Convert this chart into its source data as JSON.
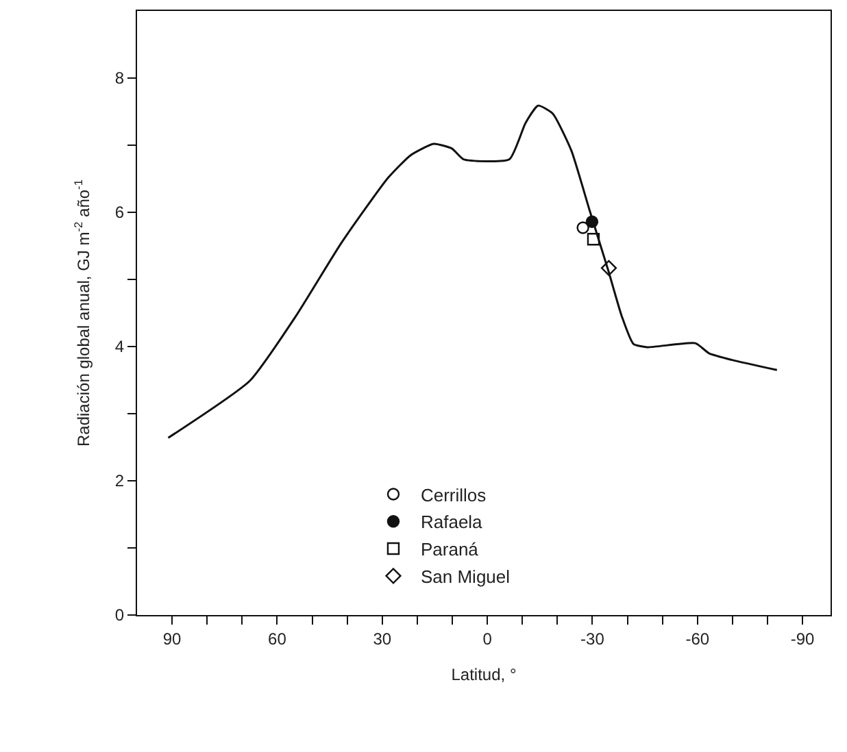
{
  "chart_data": {
    "type": "line",
    "xlabel": "Latitud, °",
    "ylabel": "Radiación global anual, GJ m$^{-2}$ año$^{-1}$",
    "xlim": [
      100,
      -98
    ],
    "ylim": [
      0,
      9
    ],
    "xticks": [
      {
        "value": 90,
        "label": "90"
      },
      {
        "value": 80,
        "label": null
      },
      {
        "value": 70,
        "label": null
      },
      {
        "value": 60,
        "label": "60"
      },
      {
        "value": 50,
        "label": null
      },
      {
        "value": 40,
        "label": null
      },
      {
        "value": 30,
        "label": "30"
      },
      {
        "value": 20,
        "label": null
      },
      {
        "value": 10,
        "label": null
      },
      {
        "value": 0,
        "label": "0"
      },
      {
        "value": -10,
        "label": null
      },
      {
        "value": -20,
        "label": null
      },
      {
        "value": -30,
        "label": "-30"
      },
      {
        "value": -40,
        "label": null
      },
      {
        "value": -50,
        "label": null
      },
      {
        "value": -60,
        "label": "-60"
      },
      {
        "value": -70,
        "label": null
      },
      {
        "value": -80,
        "label": null
      },
      {
        "value": -90,
        "label": "-90"
      }
    ],
    "yticks": [
      0,
      {
        "value": 1,
        "label": null
      },
      2,
      {
        "value": 3,
        "label": null
      },
      4,
      {
        "value": 5,
        "label": null
      },
      6,
      {
        "value": 7,
        "label": null
      },
      8
    ],
    "legend": "bottom",
    "series": [
      {
        "color": "#111111",
        "marker": "none",
        "x": [
          91.1,
          67.8,
          54.7,
          41.6,
          28.4,
          21.9,
          15.3,
          10.1,
          6.8,
          -6.3,
          -10.9,
          -14.5,
          -18.7,
          -24.0,
          -29.2,
          -34.5,
          -38.4,
          -41.7,
          -45.6,
          -59.4,
          -63.3,
          -69.9,
          -82.7
        ],
        "values": [
          2.64,
          3.49,
          4.45,
          5.55,
          6.51,
          6.85,
          7.02,
          6.95,
          6.79,
          6.79,
          7.33,
          7.59,
          7.47,
          6.92,
          6.03,
          5.14,
          4.45,
          4.04,
          3.99,
          4.05,
          3.9,
          3.8,
          3.65
        ]
      },
      {
        "type": "scatter",
        "name": "Cerrillos",
        "color": "#111111",
        "marker": "circle-open",
        "x": [
          -27.3
        ],
        "values": [
          5.77
        ]
      },
      {
        "type": "scatter",
        "name": "Rafaela",
        "color": "#111111",
        "marker": "circle",
        "x": [
          -29.9
        ],
        "values": [
          5.86
        ]
      },
      {
        "type": "scatter",
        "name": "Paraná",
        "color": "#111111",
        "marker": "square-open",
        "x": [
          -30.3
        ],
        "values": [
          5.6
        ]
      },
      {
        "type": "scatter",
        "name": "San Miguel",
        "color": "#111111",
        "marker": "diamond-open",
        "x": [
          -34.7
        ],
        "values": [
          5.17
        ]
      }
    ]
  }
}
